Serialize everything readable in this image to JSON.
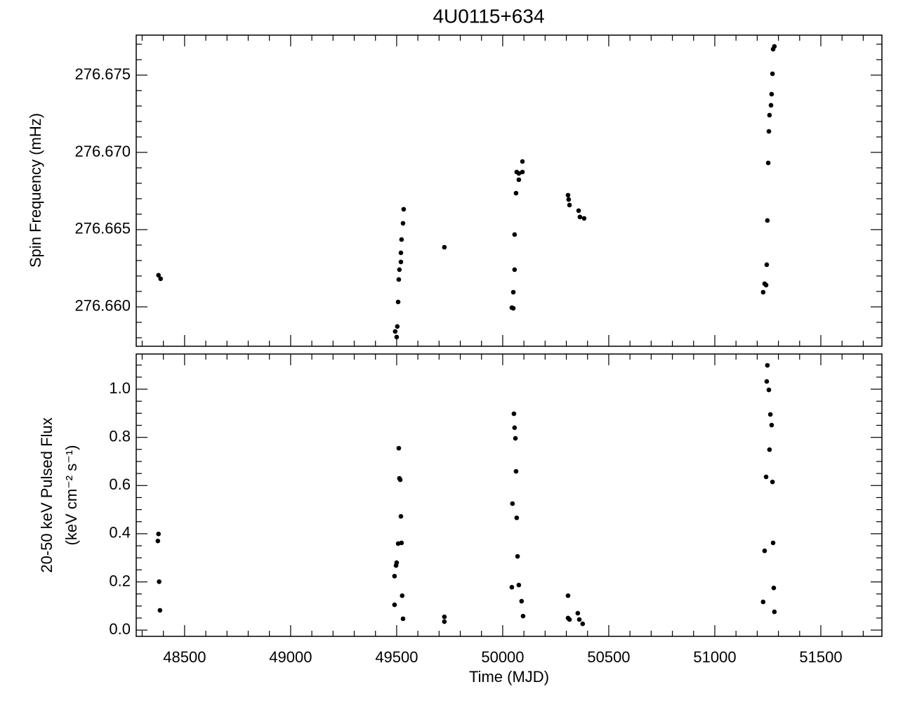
{
  "chart_data": [
    {
      "type": "scatter",
      "title": "4U0115+634",
      "y_label": "Spin Frequency (mHz)",
      "color": "#000000",
      "x": [
        48377,
        48387,
        49493,
        49500,
        49503,
        49507,
        49510,
        49513,
        49520,
        49520,
        49523,
        49530,
        49533,
        49725,
        50043,
        50050,
        50050,
        50056,
        50056,
        50063,
        50066,
        50076,
        50076,
        50093,
        50093,
        50308,
        50311,
        50315,
        50358,
        50364,
        50384,
        51228,
        51235,
        51242,
        51245,
        51248,
        51252,
        51255,
        51258,
        51265,
        51268,
        51272,
        51275,
        51281
      ],
      "values": [
        276.66205,
        276.66182,
        276.65841,
        276.65805,
        276.65873,
        276.66032,
        276.66177,
        276.66241,
        276.66291,
        276.6635,
        276.66436,
        276.66541,
        276.66632,
        276.66386,
        276.65995,
        276.65991,
        276.66095,
        276.66241,
        276.66468,
        276.66736,
        276.66873,
        276.66864,
        276.66823,
        276.66873,
        276.66941,
        276.66723,
        276.66695,
        276.66659,
        276.66623,
        276.66582,
        276.66573,
        276.66095,
        276.6615,
        276.66141,
        276.66273,
        276.66559,
        276.66932,
        276.67136,
        276.67241,
        276.67305,
        276.67377,
        276.67509,
        276.67668,
        276.67686
      ],
      "xlim": [
        48272,
        51788
      ],
      "ylim": [
        276.65745,
        276.67759
      ],
      "yticks": [
        {
          "value": 276.66,
          "label": "276.660"
        },
        276.665,
        {
          "value": 276.67,
          "label": "276.670"
        },
        276.675
      ]
    },
    {
      "type": "scatter",
      "x_label": "Time (MJD)",
      "y_label": [
        "20-50 keV Pulsed Flux",
        "(keV cm⁻² s⁻¹)"
      ],
      "color": "#000000",
      "x": [
        48377,
        48374,
        48380,
        48384,
        49490,
        49490,
        49497,
        49500,
        49507,
        49510,
        49513,
        49517,
        49520,
        49523,
        49526,
        49530,
        49725,
        49725,
        50043,
        50046,
        50053,
        50056,
        50060,
        50063,
        50066,
        50070,
        50076,
        50089,
        50096,
        50308,
        50308,
        50315,
        50354,
        50361,
        50377,
        51228,
        51235,
        51242,
        51248,
        51245,
        51255,
        51258,
        51262,
        51268,
        51272,
        51275,
        51278,
        51281
      ],
      "values": [
        0.399,
        0.37,
        0.201,
        0.082,
        0.105,
        0.224,
        0.268,
        0.28,
        0.359,
        0.755,
        0.63,
        0.624,
        0.472,
        0.362,
        0.143,
        0.047,
        0.055,
        0.035,
        0.178,
        0.525,
        0.898,
        0.84,
        0.796,
        0.659,
        0.466,
        0.306,
        0.187,
        0.12,
        0.058,
        0.143,
        0.05,
        0.044,
        0.07,
        0.044,
        0.026,
        0.117,
        0.329,
        0.636,
        1.099,
        1.032,
        0.997,
        0.749,
        0.895,
        0.851,
        0.615,
        0.362,
        0.175,
        0.076
      ],
      "xlim": [
        48272,
        51788
      ],
      "ylim": [
        -0.026,
        1.146
      ],
      "xticks": [
        48500,
        49000,
        49500,
        50000,
        50500,
        51000,
        51500
      ],
      "yticks": [
        {
          "value": 0,
          "label": "0.0"
        },
        0.2,
        0.4,
        0.6,
        0.8,
        {
          "value": 1,
          "label": "1.0"
        }
      ]
    }
  ]
}
